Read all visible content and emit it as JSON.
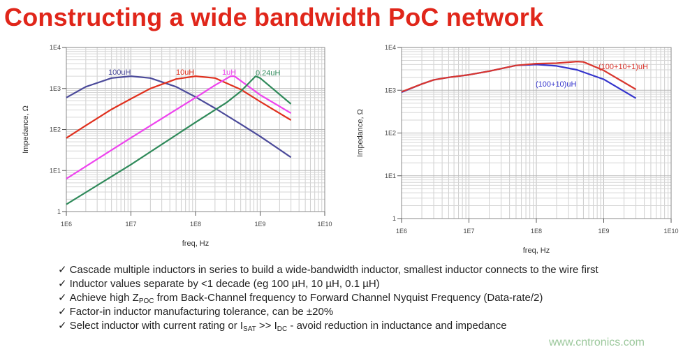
{
  "title": "Constructing a wide bandwidth PoC network",
  "chart_data": [
    {
      "type": "line",
      "xlabel": "freq, Hz",
      "ylabel": "Impedance, Ω",
      "xscale": "log",
      "yscale": "log",
      "xlim": [
        1000000.0,
        10000000000.0
      ],
      "ylim": [
        1,
        10000.0
      ],
      "xticks": [
        "1E6",
        "1E7",
        "1E8",
        "1E9",
        "1E10"
      ],
      "yticks": [
        "1",
        "1E1",
        "1E2",
        "1E3",
        "1E4"
      ],
      "grid": true,
      "series": [
        {
          "name": "100uH",
          "color": "#4b4a9a",
          "x": [
            1000000.0,
            2000000.0,
            5000000.0,
            10000000.0,
            20000000.0,
            50000000.0,
            100000000.0,
            200000000.0,
            500000000.0,
            1000000000.0,
            3000000000.0
          ],
          "y": [
            600,
            1100,
            1800,
            2000,
            1800,
            1100,
            620,
            330,
            135,
            68,
            21
          ]
        },
        {
          "name": "10uH",
          "color": "#e0301e",
          "x": [
            1000000.0,
            2000000.0,
            5000000.0,
            10000000.0,
            20000000.0,
            50000000.0,
            100000000.0,
            200000000.0,
            500000000.0,
            1000000000.0,
            3000000000.0
          ],
          "y": [
            62,
            125,
            310,
            560,
            1000,
            1700,
            2000,
            1800,
            950,
            480,
            170
          ]
        },
        {
          "name": "1uH",
          "color": "#ee44ee",
          "x": [
            1000000.0,
            10000000.0,
            100000000.0,
            200000000.0,
            350000000.0,
            400000000.0,
            1000000000.0,
            3000000000.0
          ],
          "y": [
            6.3,
            63,
            600,
            1200,
            2000,
            2000,
            700,
            250
          ]
        },
        {
          "name": "0.24uH",
          "color": "#2f8a5a",
          "x": [
            1000000.0,
            10000000.0,
            100000000.0,
            300000000.0,
            500000000.0,
            850000000.0,
            1000000000.0,
            3000000000.0
          ],
          "y": [
            1.5,
            14,
            150,
            450,
            850,
            2000,
            1800,
            420
          ]
        }
      ]
    },
    {
      "type": "line",
      "xlabel": "freq, Hz",
      "ylabel": "Impedance, Ω",
      "xscale": "log",
      "yscale": "log",
      "xlim": [
        1000000.0,
        10000000000.0
      ],
      "ylim": [
        1,
        10000.0
      ],
      "xticks": [
        "1E6",
        "1E7",
        "1E8",
        "1E9",
        "1E10"
      ],
      "yticks": [
        "1",
        "1E1",
        "1E2",
        "1E3",
        "1E4"
      ],
      "grid": true,
      "series": [
        {
          "name": "(100+10)uH",
          "color": "#3434cc",
          "x": [
            1000000.0,
            2000000.0,
            3000000.0,
            5000000.0,
            10000000.0,
            20000000.0,
            50000000.0,
            100000000.0,
            200000000.0,
            400000000.0,
            1000000000.0,
            3000000000.0
          ],
          "y": [
            900,
            1400,
            1750,
            2000,
            2300,
            2800,
            3800,
            4000,
            3700,
            3000,
            1800,
            650
          ]
        },
        {
          "name": "(100+10+1)uH",
          "color": "#d9362e",
          "x": [
            1000000.0,
            2000000.0,
            3000000.0,
            5000000.0,
            10000000.0,
            20000000.0,
            50000000.0,
            100000000.0,
            200000000.0,
            400000000.0,
            500000000.0,
            1000000000.0,
            3000000000.0
          ],
          "y": [
            920,
            1400,
            1750,
            2000,
            2300,
            2800,
            3800,
            4200,
            4300,
            4700,
            4600,
            2900,
            1050
          ]
        }
      ]
    }
  ],
  "bullets": [
    {
      "check": "✓",
      "parts": [
        {
          "t": "Cascade multiple inductors in series to build a wide-bandwidth inductor, smallest inductor connects to the wire first"
        }
      ]
    },
    {
      "check": "✓",
      "parts": [
        {
          "t": "Inductor values separate by <1 decade (eg 100 µH, 10 µH, 0.1 µH)"
        }
      ]
    },
    {
      "check": "✓",
      "parts": [
        {
          "t": "Achieve high Z"
        },
        {
          "t": "POC",
          "sub": true
        },
        {
          "t": " from Back-Channel frequency to Forward Channel Nyquist Frequency (Data-rate/2)"
        }
      ]
    },
    {
      "check": "✓",
      "parts": [
        {
          "t": "Factor-in inductor manufacturing tolerance, can be ±20%"
        }
      ]
    },
    {
      "check": "✓",
      "parts": [
        {
          "t": "Select inductor with current rating or I"
        },
        {
          "t": "SAT",
          "sub": true
        },
        {
          "t": " >> I"
        },
        {
          "t": "DC",
          "sub": true
        },
        {
          "t": " - avoid reduction in inductance and impedance"
        }
      ]
    }
  ],
  "watermark": "www.cntronics.com"
}
